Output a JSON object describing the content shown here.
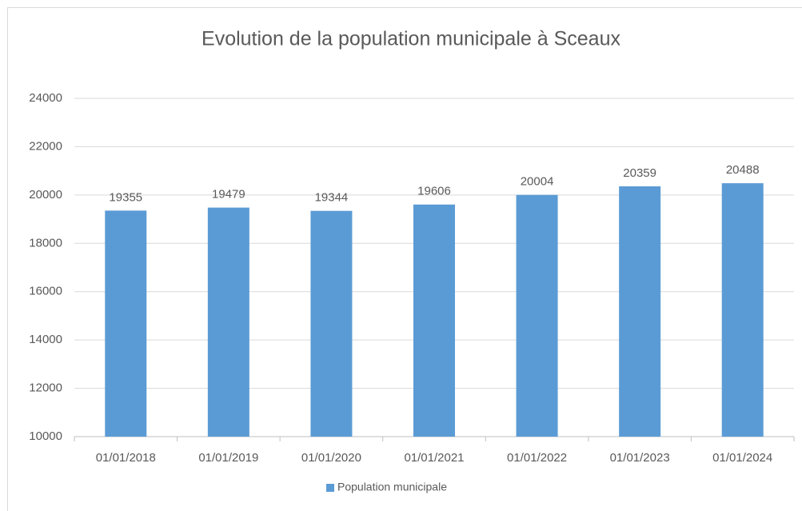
{
  "chart_data": {
    "type": "bar",
    "title": "Evolution de la population municipale à Sceaux",
    "categories": [
      "01/01/2018",
      "01/01/2019",
      "01/01/2020",
      "01/01/2021",
      "01/01/2022",
      "01/01/2023",
      "01/01/2024"
    ],
    "series": [
      {
        "name": "Population municipale",
        "color": "#5b9bd5",
        "values": [
          19355,
          19479,
          19344,
          19606,
          20004,
          20359,
          20488
        ]
      }
    ],
    "ylim": [
      10000,
      24000
    ],
    "yticks": [
      10000,
      12000,
      14000,
      16000,
      18000,
      20000,
      22000,
      24000
    ],
    "grid": true,
    "legend": "bottom"
  }
}
